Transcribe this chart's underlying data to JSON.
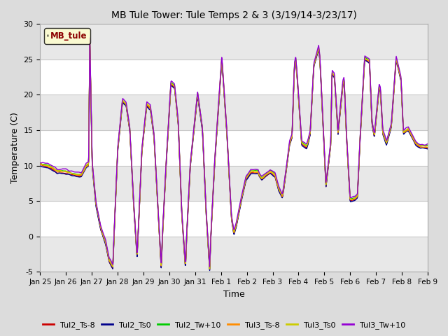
{
  "title": "MB Tule Tower: Tule Temps 2 & 3 (3/19/14-3/23/17)",
  "xlabel": "Time",
  "ylabel": "Temperature (C)",
  "xlim_labels": [
    "Jan 25",
    "Jan 26",
    "Jan 27",
    "Jan 28",
    "Jan 29",
    "Jan 30",
    "Jan 31",
    "Feb 1",
    "Feb 2",
    "Feb 3",
    "Feb 4",
    "Feb 5",
    "Feb 6",
    "Feb 7",
    "Feb 8",
    "Feb 9"
  ],
  "ylim": [
    -5,
    30
  ],
  "yticks": [
    -5,
    0,
    5,
    10,
    15,
    20,
    25,
    30
  ],
  "legend_label": "MB_tule",
  "series_names": [
    "Tul2_Ts-8",
    "Tul2_Ts0",
    "Tul2_Tw+10",
    "Tul3_Ts-8",
    "Tul3_Ts0",
    "Tul3_Tw+10"
  ],
  "series_colors": [
    "#cc0000",
    "#00008b",
    "#00cc00",
    "#ff8c00",
    "#cccc00",
    "#9400d3"
  ],
  "background_color": "#dcdcdc",
  "plot_bg_color": "#ffffff",
  "grid_color": "#c8c8c8",
  "stripe_color": "#e8e8e8"
}
